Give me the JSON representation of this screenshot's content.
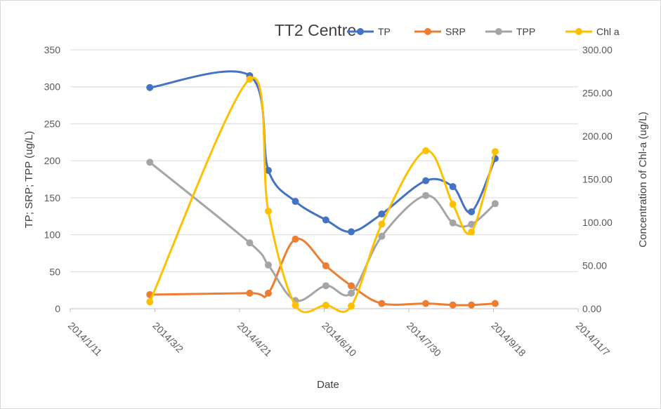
{
  "chart_data": {
    "type": "line",
    "title": "TT2 Centre",
    "xlabel": "Date",
    "ylabel": "TP; SRP; TPP (ug/L)",
    "y2label": "Concentration of Chl-a (ug/L)",
    "xlim": [
      "2014/1/11",
      "2014/11/7"
    ],
    "x_ticks": [
      "2014/1/11",
      "2014/3/2",
      "2014/4/21",
      "2014/6/10",
      "2014/7/30",
      "2014/9/18",
      "2014/11/7"
    ],
    "ylim": [
      0,
      350
    ],
    "y_ticks": [
      "0",
      "50",
      "100",
      "150",
      "200",
      "250",
      "300",
      "350"
    ],
    "y2lim": [
      0,
      300
    ],
    "y2_ticks": [
      "0.00",
      "50.00",
      "100.00",
      "150.00",
      "200.00",
      "250.00",
      "300.00"
    ],
    "grid": "horizontal",
    "legend_position": "top-right",
    "series": [
      {
        "name": "TP",
        "axis": "left",
        "color": "#4472C4",
        "x": [
          "2014/2/27",
          "2014/4/27",
          "2014/5/8",
          "2014/5/24",
          "2014/6/11",
          "2014/6/26",
          "2014/7/14",
          "2014/8/9",
          "2014/8/25",
          "2014/9/5",
          "2014/9/19"
        ],
        "values": [
          299,
          315,
          187,
          145,
          120,
          104,
          128,
          173,
          165,
          131,
          203
        ]
      },
      {
        "name": "SRP",
        "axis": "left",
        "color": "#ED7D31",
        "x": [
          "2014/2/27",
          "2014/4/27",
          "2014/5/8",
          "2014/5/24",
          "2014/6/11",
          "2014/6/26",
          "2014/7/14",
          "2014/8/9",
          "2014/8/25",
          "2014/9/5",
          "2014/9/19"
        ],
        "values": [
          19,
          21,
          21,
          94,
          58,
          31,
          7,
          7,
          5,
          5,
          7
        ]
      },
      {
        "name": "TPP",
        "axis": "left",
        "color": "#A5A5A5",
        "x": [
          "2014/2/27",
          "2014/4/27",
          "2014/5/8",
          "2014/5/24",
          "2014/6/11",
          "2014/6/26",
          "2014/7/14",
          "2014/8/9",
          "2014/8/25",
          "2014/9/5",
          "2014/9/19"
        ],
        "values": [
          198,
          89,
          59,
          11,
          31,
          21,
          98,
          153,
          116,
          114,
          142
        ]
      },
      {
        "name": "Chl a",
        "axis": "right",
        "color": "#FFC000",
        "x": [
          "2014/2/27",
          "2014/4/27",
          "2014/5/8",
          "2014/5/24",
          "2014/6/11",
          "2014/6/26",
          "2014/7/14",
          "2014/8/9",
          "2014/8/25",
          "2014/9/5",
          "2014/9/19"
        ],
        "values": [
          8,
          266,
          113,
          4,
          4,
          3,
          98,
          183,
          121,
          89,
          182
        ]
      }
    ]
  }
}
